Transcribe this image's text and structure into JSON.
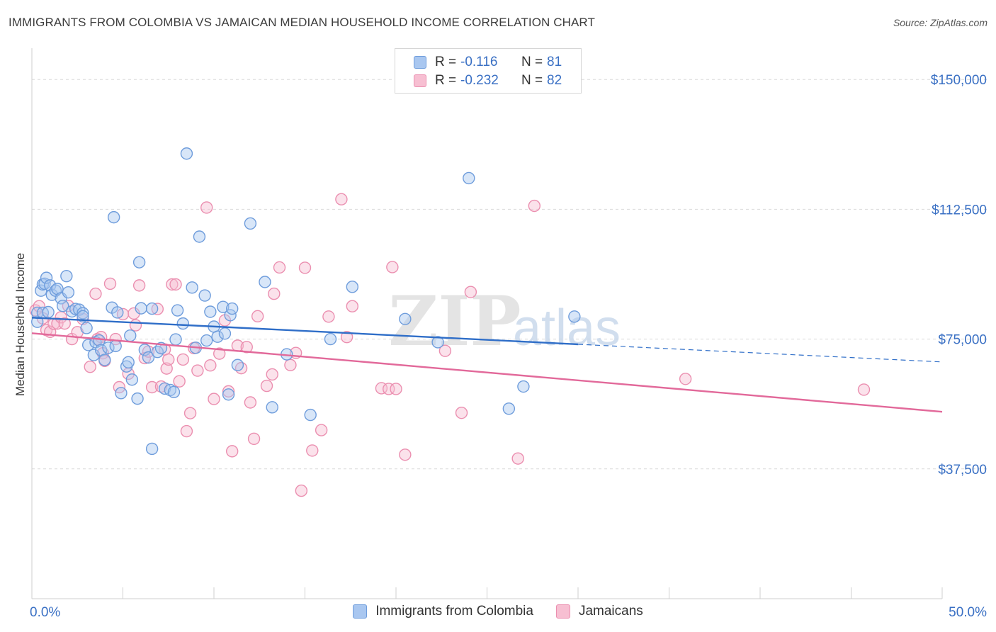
{
  "title": "IMMIGRANTS FROM COLOMBIA VS JAMAICAN MEDIAN HOUSEHOLD INCOME CORRELATION CHART",
  "source": "Source: ZipAtlas.com",
  "watermark": {
    "zip": "ZIP",
    "atlas": "atlas"
  },
  "legend": {
    "rows": [
      {
        "r_label": "R =",
        "r_value": "-0.116",
        "n_label": "N =",
        "n_value": "81"
      },
      {
        "r_label": "R =",
        "r_value": "-0.232",
        "n_label": "N =",
        "n_value": "82"
      }
    ]
  },
  "chart_data": {
    "type": "scatter",
    "title": "IMMIGRANTS FROM COLOMBIA VS JAMAICAN MEDIAN HOUSEHOLD INCOME CORRELATION CHART",
    "xlabel": "",
    "ylabel": "Median Household Income",
    "xlim": [
      0,
      50
    ],
    "ylim": [
      0,
      157000
    ],
    "x_tick_labels": [
      {
        "value": 0,
        "label": "0.0%"
      },
      {
        "value": 50,
        "label": "50.0%"
      }
    ],
    "y_tick_labels": [
      {
        "value": 37500,
        "label": "$37,500"
      },
      {
        "value": 75000,
        "label": "$75,000"
      },
      {
        "value": 112500,
        "label": "$112,500"
      },
      {
        "value": 150000,
        "label": "$150,000"
      }
    ],
    "colors": {
      "colombia_fill": "#a9c7f0",
      "colombia_stroke": "#6f9ddc",
      "colombia_line": "#2f6ec8",
      "jamaica_fill": "#f7bfd2",
      "jamaica_stroke": "#eb8fb0",
      "jamaica_line": "#e2699a",
      "axis_label": "#3a70c4"
    },
    "series": [
      {
        "name": "Immigrants from Colombia",
        "trend": {
          "x0": 0,
          "y0": 81200,
          "x1": 30,
          "y1": 73500,
          "dashed_to_x": 50,
          "dashed_to_y": 68400
        },
        "points": [
          [
            0.3,
            80000
          ],
          [
            0.3,
            82600
          ],
          [
            0.5,
            89000
          ],
          [
            0.6,
            90800
          ],
          [
            0.6,
            82600
          ],
          [
            0.7,
            91000
          ],
          [
            0.8,
            92700
          ],
          [
            0.9,
            82800
          ],
          [
            1.0,
            90500
          ],
          [
            1.1,
            87800
          ],
          [
            1.3,
            89000
          ],
          [
            1.4,
            89500
          ],
          [
            1.6,
            86800
          ],
          [
            1.7,
            84600
          ],
          [
            1.9,
            93200
          ],
          [
            2.0,
            88500
          ],
          [
            2.2,
            83000
          ],
          [
            2.4,
            83700
          ],
          [
            2.6,
            83500
          ],
          [
            2.8,
            82500
          ],
          [
            2.8,
            81600
          ],
          [
            3.0,
            78200
          ],
          [
            3.1,
            73300
          ],
          [
            3.4,
            70400
          ],
          [
            3.5,
            74100
          ],
          [
            3.7,
            74600
          ],
          [
            3.8,
            71800
          ],
          [
            4.0,
            69000
          ],
          [
            4.2,
            72500
          ],
          [
            4.4,
            84100
          ],
          [
            4.5,
            110200
          ],
          [
            4.6,
            73000
          ],
          [
            4.7,
            82700
          ],
          [
            4.9,
            59400
          ],
          [
            5.2,
            67100
          ],
          [
            5.3,
            68300
          ],
          [
            5.4,
            76000
          ],
          [
            5.5,
            63300
          ],
          [
            5.8,
            57800
          ],
          [
            5.9,
            97200
          ],
          [
            6.0,
            83900
          ],
          [
            6.2,
            71900
          ],
          [
            6.4,
            69700
          ],
          [
            6.6,
            43300
          ],
          [
            6.6,
            83800
          ],
          [
            6.9,
            71300
          ],
          [
            7.1,
            72400
          ],
          [
            7.3,
            60700
          ],
          [
            7.6,
            60300
          ],
          [
            7.8,
            59700
          ],
          [
            7.9,
            74900
          ],
          [
            8.0,
            83300
          ],
          [
            8.3,
            79500
          ],
          [
            8.5,
            128600
          ],
          [
            8.8,
            89900
          ],
          [
            9.0,
            72500
          ],
          [
            9.2,
            104600
          ],
          [
            9.5,
            87600
          ],
          [
            9.6,
            74600
          ],
          [
            9.8,
            82900
          ],
          [
            10.0,
            78600
          ],
          [
            10.2,
            75700
          ],
          [
            10.5,
            84300
          ],
          [
            10.6,
            76600
          ],
          [
            10.8,
            59000
          ],
          [
            10.9,
            81900
          ],
          [
            11.0,
            83800
          ],
          [
            11.3,
            67500
          ],
          [
            12.0,
            108400
          ],
          [
            12.8,
            91500
          ],
          [
            13.2,
            55300
          ],
          [
            14.0,
            70600
          ],
          [
            15.3,
            53100
          ],
          [
            16.4,
            75000
          ],
          [
            17.6,
            90100
          ],
          [
            20.5,
            80800
          ],
          [
            22.3,
            74100
          ],
          [
            24.0,
            121500
          ],
          [
            26.2,
            54900
          ],
          [
            27.0,
            61300
          ],
          [
            29.8,
            81500
          ]
        ]
      },
      {
        "name": "Jamaicans",
        "trend": {
          "x0": 0,
          "y0": 76700,
          "x1": 50,
          "y1": 54000
        },
        "points": [
          [
            0.2,
            83300
          ],
          [
            0.4,
            84500
          ],
          [
            0.6,
            81000
          ],
          [
            0.8,
            77600
          ],
          [
            1.0,
            77100
          ],
          [
            1.2,
            79400
          ],
          [
            1.4,
            79500
          ],
          [
            1.6,
            81300
          ],
          [
            1.8,
            79500
          ],
          [
            2.0,
            84600
          ],
          [
            2.2,
            75000
          ],
          [
            2.5,
            77000
          ],
          [
            2.8,
            80800
          ],
          [
            3.2,
            67000
          ],
          [
            3.5,
            88100
          ],
          [
            3.6,
            75000
          ],
          [
            3.8,
            75600
          ],
          [
            3.9,
            70900
          ],
          [
            4.0,
            68700
          ],
          [
            4.3,
            91000
          ],
          [
            4.6,
            75000
          ],
          [
            4.8,
            61100
          ],
          [
            5.0,
            82200
          ],
          [
            5.3,
            65000
          ],
          [
            5.6,
            82400
          ],
          [
            5.7,
            79000
          ],
          [
            5.9,
            90500
          ],
          [
            6.2,
            69500
          ],
          [
            6.4,
            71400
          ],
          [
            6.6,
            61100
          ],
          [
            6.9,
            83700
          ],
          [
            7.1,
            61300
          ],
          [
            7.3,
            72000
          ],
          [
            7.4,
            66500
          ],
          [
            7.5,
            69100
          ],
          [
            7.7,
            90800
          ],
          [
            7.9,
            90800
          ],
          [
            8.1,
            62800
          ],
          [
            8.3,
            69100
          ],
          [
            8.5,
            48400
          ],
          [
            8.7,
            53600
          ],
          [
            8.9,
            72400
          ],
          [
            9.1,
            65900
          ],
          [
            9.6,
            113000
          ],
          [
            9.8,
            67400
          ],
          [
            10.0,
            57700
          ],
          [
            10.3,
            70800
          ],
          [
            10.6,
            80400
          ],
          [
            10.8,
            59900
          ],
          [
            11.0,
            42600
          ],
          [
            11.3,
            73100
          ],
          [
            11.5,
            66600
          ],
          [
            11.8,
            72700
          ],
          [
            12.0,
            56700
          ],
          [
            12.2,
            46200
          ],
          [
            12.4,
            81600
          ],
          [
            12.9,
            61500
          ],
          [
            13.2,
            64800
          ],
          [
            13.3,
            88100
          ],
          [
            13.6,
            95700
          ],
          [
            14.2,
            67500
          ],
          [
            14.5,
            71000
          ],
          [
            14.8,
            31200
          ],
          [
            15.0,
            95600
          ],
          [
            15.4,
            42800
          ],
          [
            15.9,
            48700
          ],
          [
            16.3,
            81500
          ],
          [
            17.0,
            115400
          ],
          [
            17.3,
            75600
          ],
          [
            17.6,
            84500
          ],
          [
            19.2,
            60800
          ],
          [
            19.6,
            60600
          ],
          [
            20.0,
            60600
          ],
          [
            20.5,
            41600
          ],
          [
            22.7,
            71600
          ],
          [
            23.6,
            53700
          ],
          [
            24.1,
            88600
          ],
          [
            26.7,
            40500
          ],
          [
            27.6,
            113500
          ],
          [
            35.9,
            63500
          ],
          [
            45.7,
            60400
          ],
          [
            19.8,
            95800
          ]
        ]
      }
    ]
  }
}
